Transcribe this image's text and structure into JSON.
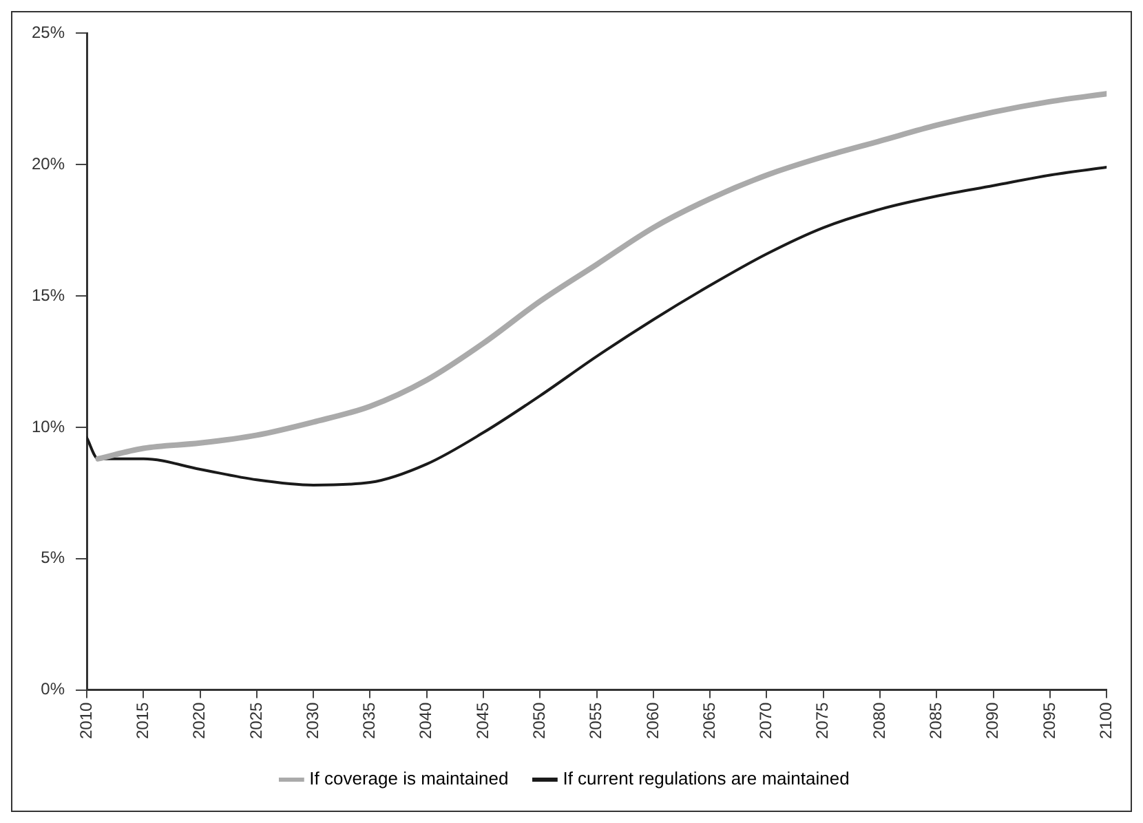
{
  "chart_data": {
    "type": "line",
    "x": [
      2010,
      2011,
      2015,
      2020,
      2025,
      2030,
      2035,
      2040,
      2045,
      2050,
      2055,
      2060,
      2065,
      2070,
      2075,
      2080,
      2085,
      2090,
      2095,
      2100
    ],
    "series": [
      {
        "name": "If coverage is maintained",
        "color": "#aaaaaa",
        "values": [
          null,
          8.8,
          9.2,
          9.4,
          9.7,
          10.2,
          10.8,
          11.8,
          13.2,
          14.8,
          16.2,
          17.6,
          18.7,
          19.6,
          20.3,
          20.9,
          21.5,
          22.0,
          22.4,
          22.7
        ]
      },
      {
        "name": "If current regulations are maintained",
        "color": "#1a1a1a",
        "values": [
          9.6,
          8.8,
          8.8,
          8.4,
          8.0,
          7.8,
          7.9,
          8.6,
          9.8,
          11.2,
          12.7,
          14.1,
          15.4,
          16.6,
          17.6,
          18.3,
          18.8,
          19.2,
          19.6,
          19.9
        ]
      }
    ],
    "xlim": [
      2010,
      2100
    ],
    "xticks": [
      2010,
      2015,
      2020,
      2025,
      2030,
      2035,
      2040,
      2045,
      2050,
      2055,
      2060,
      2065,
      2070,
      2075,
      2080,
      2085,
      2090,
      2095,
      2100
    ],
    "ylim": [
      0,
      25
    ],
    "yticks": [
      {
        "value": 0,
        "label": "0%"
      },
      {
        "value": 5,
        "label": "5%"
      },
      {
        "value": 10,
        "label": "10%"
      },
      {
        "value": 15,
        "label": "15%"
      },
      {
        "value": 20,
        "label": "20%"
      },
      {
        "value": 25,
        "label": "25%"
      }
    ],
    "grid": false,
    "legend": "bottom",
    "marker": "none",
    "line_style": "solid"
  }
}
